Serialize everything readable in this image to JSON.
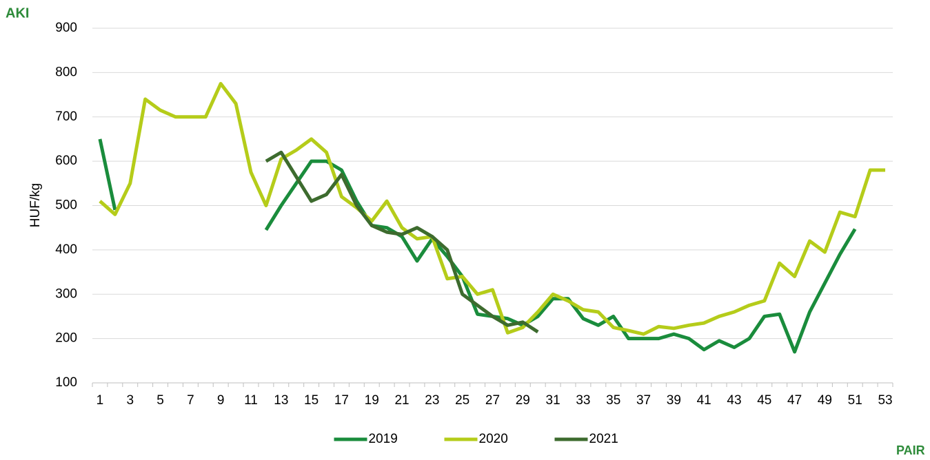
{
  "logos": {
    "top_left": "AKI",
    "bottom_right": "PAIR"
  },
  "chart_data": {
    "type": "line",
    "y_label": "HUF/kg",
    "categories": [
      1,
      null,
      3,
      null,
      5,
      null,
      7,
      null,
      9,
      null,
      11,
      null,
      13,
      null,
      15,
      null,
      17,
      null,
      19,
      null,
      21,
      null,
      23,
      null,
      25,
      null,
      27,
      null,
      29,
      null,
      31,
      null,
      33,
      null,
      35,
      null,
      37,
      null,
      39,
      null,
      41,
      null,
      43,
      null,
      45,
      null,
      47,
      null,
      49,
      null,
      51,
      null,
      53
    ],
    "series": [
      {
        "name": "2019",
        "color": "#1a8c3c",
        "values": [
          650,
          490,
          null,
          null,
          null,
          null,
          null,
          null,
          null,
          null,
          null,
          445,
          500,
          550,
          600,
          600,
          580,
          510,
          455,
          450,
          430,
          375,
          425,
          385,
          340,
          255,
          250,
          245,
          230,
          250,
          290,
          290,
          245,
          230,
          250,
          200,
          200,
          200,
          210,
          200,
          175,
          195,
          180,
          200,
          250,
          255,
          170,
          260,
          325,
          390,
          447,
          null,
          null
        ]
      },
      {
        "name": "2020",
        "color": "#b5cc1a",
        "values": [
          510,
          480,
          550,
          740,
          715,
          700,
          700,
          700,
          775,
          730,
          575,
          500,
          605,
          625,
          650,
          620,
          520,
          495,
          465,
          510,
          450,
          425,
          430,
          335,
          340,
          300,
          310,
          213,
          225,
          260,
          300,
          285,
          265,
          260,
          225,
          218,
          210,
          227,
          223,
          230,
          235,
          250,
          260,
          275,
          285,
          370,
          340,
          420,
          395,
          485,
          475,
          580,
          580
        ]
      },
      {
        "name": "2021",
        "color": "#3d6b2e",
        "values": [
          null,
          null,
          null,
          null,
          null,
          null,
          null,
          null,
          null,
          null,
          null,
          600,
          620,
          565,
          510,
          525,
          570,
          500,
          455,
          440,
          435,
          450,
          430,
          400,
          300,
          275,
          250,
          230,
          237,
          215,
          null,
          null,
          null,
          null,
          null,
          null,
          null,
          null,
          null,
          null,
          null,
          null,
          null,
          null,
          null,
          null,
          null,
          null,
          null,
          null,
          null,
          null,
          null
        ]
      }
    ],
    "ylim": [
      100,
      900
    ],
    "yticks": [
      100,
      200,
      300,
      400,
      500,
      600,
      700,
      800,
      900
    ],
    "grid": true,
    "legend": "bottom"
  }
}
